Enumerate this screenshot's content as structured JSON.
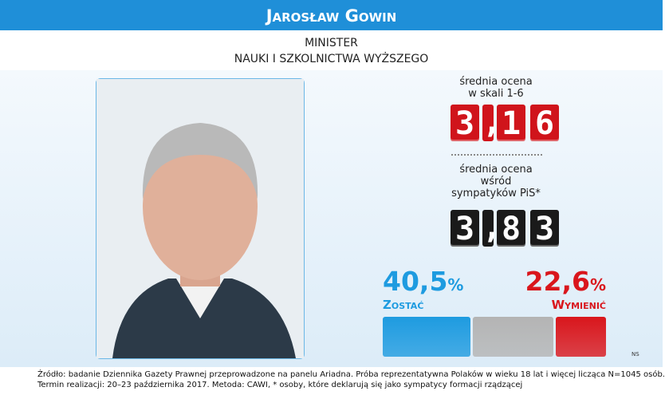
{
  "header": {
    "name": "Jarosław Gowin",
    "role": [
      "MINISTER",
      "NAUKI I SZKOLNICTWA WYŻSZEGO"
    ]
  },
  "scores": [
    {
      "caption": [
        "średnia ocena",
        "w skali 1-6"
      ],
      "value": "3,16",
      "color": "#d0141b"
    },
    {
      "caption": [
        "średnia ocena",
        "wśród",
        "sympatyków PiS*"
      ],
      "value": "3,83",
      "color": "#1a1a1a"
    }
  ],
  "poll": [
    {
      "name": "Zostać",
      "value": 40.5,
      "label": "40,5%",
      "color": "#1e9be0"
    },
    {
      "name": "Wymienić",
      "value": 22.6,
      "label": "22,6%",
      "color": "#d9161c"
    }
  ],
  "remainder_color": "#b4b4b4",
  "author": "NS",
  "footer": [
    "Źródło: badanie Dziennika Gazety Prawnej przeprowadzone na panelu Ariadna. Próba reprezentatywna Polaków w wieku 18 lat i więcej licząca N=1045 osób.",
    "Termin realizacji: 20–23 października 2017. Metoda: CAWI, * osoby, które deklarują się jako sympatycy formacji rządzącej"
  ]
}
